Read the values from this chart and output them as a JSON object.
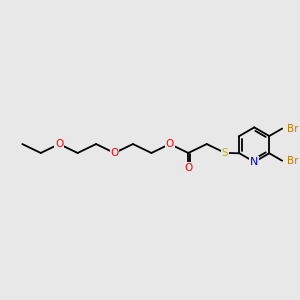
{
  "bg_color": "#e8e8e8",
  "atom_colors": {
    "C": "#000000",
    "O": "#ff0000",
    "N": "#0000cc",
    "S": "#ccaa00",
    "Br": "#cc7700",
    "H": "#000000"
  },
  "bond_color": "#000000",
  "bond_lw": 1.3,
  "font_size": 7.5,
  "title": ""
}
